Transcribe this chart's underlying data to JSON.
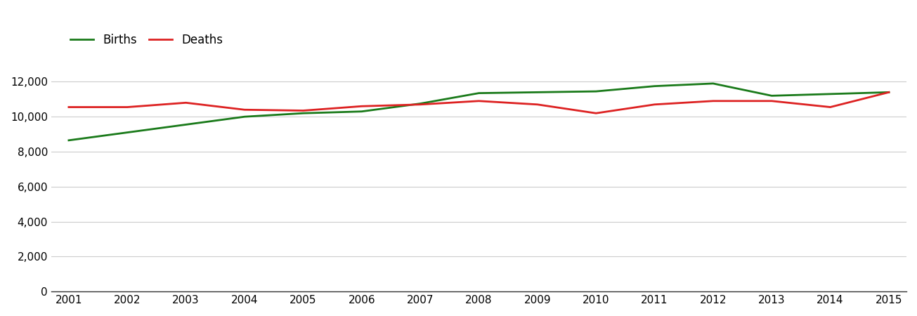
{
  "years": [
    2001,
    2002,
    2003,
    2004,
    2005,
    2006,
    2007,
    2008,
    2009,
    2010,
    2011,
    2012,
    2013,
    2014,
    2015
  ],
  "births": [
    8650,
    9100,
    9550,
    10000,
    10200,
    10300,
    10750,
    11350,
    11400,
    11450,
    11750,
    11900,
    11200,
    11300,
    11400
  ],
  "deaths": [
    10550,
    10550,
    10800,
    10400,
    10350,
    10600,
    10700,
    10900,
    10700,
    10200,
    10700,
    10900,
    10900,
    10550,
    11400
  ],
  "births_color": "#1a7a1a",
  "deaths_color": "#dd2222",
  "background_color": "#ffffff",
  "grid_color": "#cccccc",
  "legend_labels": [
    "Births",
    "Deaths"
  ],
  "ylim": [
    0,
    13000
  ],
  "yticks": [
    0,
    2000,
    4000,
    6000,
    8000,
    10000,
    12000
  ],
  "xlim": [
    2001,
    2015
  ],
  "line_width": 2.0,
  "tick_fontsize": 11,
  "legend_fontsize": 12
}
